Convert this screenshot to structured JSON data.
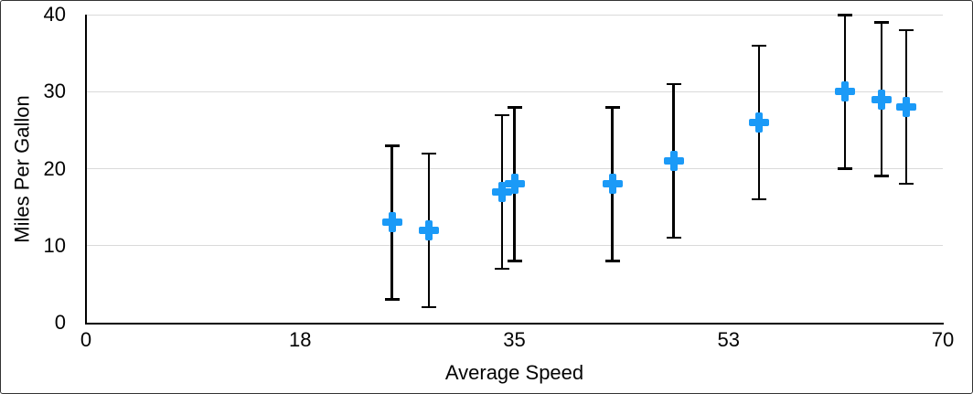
{
  "chart_data": {
    "type": "scatter",
    "title": "",
    "xlabel": "Average Speed",
    "ylabel": "Miles Per Gallon",
    "xlim": [
      0,
      70
    ],
    "ylim": [
      0,
      40
    ],
    "x_tick_labels": [
      "0",
      "18",
      "35",
      "53",
      "70"
    ],
    "x_tick_positions": [
      0,
      17.5,
      35,
      52.5,
      70
    ],
    "y_tick_labels": [
      "0",
      "10",
      "20",
      "30",
      "40"
    ],
    "y_tick_values": [
      0,
      10,
      20,
      30,
      40
    ],
    "grid": "horizontal-gridlines-on",
    "legend": "none",
    "marker_shape": "plus",
    "marker_color": "#1B9AF7",
    "error_bar_color": "#000000",
    "gridline_color": "#dadada",
    "axis_color": "#000000",
    "points": [
      {
        "x": 25,
        "y": 13,
        "error_plus": 10,
        "error_minus": 10
      },
      {
        "x": 28,
        "y": 12,
        "error_plus": 10,
        "error_minus": 10
      },
      {
        "x": 34,
        "y": 17,
        "error_plus": 10,
        "error_minus": 10
      },
      {
        "x": 35,
        "y": 18,
        "error_plus": 10,
        "error_minus": 10
      },
      {
        "x": 43,
        "y": 18,
        "error_plus": 10,
        "error_minus": 10
      },
      {
        "x": 48,
        "y": 21,
        "error_plus": 10,
        "error_minus": 10
      },
      {
        "x": 55,
        "y": 26,
        "error_plus": 10,
        "error_minus": 10
      },
      {
        "x": 62,
        "y": 30,
        "error_plus": 10,
        "error_minus": 10
      },
      {
        "x": 65,
        "y": 29,
        "error_plus": 10,
        "error_minus": 10
      },
      {
        "x": 67,
        "y": 28,
        "error_plus": 10,
        "error_minus": 10
      }
    ]
  }
}
